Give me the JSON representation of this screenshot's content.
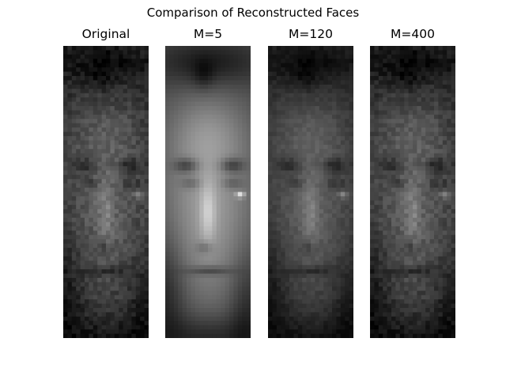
{
  "figure": {
    "title": "Comparison of Reconstructed Faces",
    "panels": [
      {
        "id": "original",
        "label": "Original",
        "blur": 0,
        "contrast": 1.0,
        "brightness": 0
      },
      {
        "id": "m5",
        "label": "M=5",
        "blur": 1.6,
        "contrast": 1.55,
        "brightness": 42
      },
      {
        "id": "m120",
        "label": "M=120",
        "blur": 0.45,
        "contrast": 1.0,
        "brightness": 0
      },
      {
        "id": "m400",
        "label": "M=400",
        "blur": 0.05,
        "contrast": 1.0,
        "brightness": 0
      }
    ],
    "colormap": "gray"
  }
}
